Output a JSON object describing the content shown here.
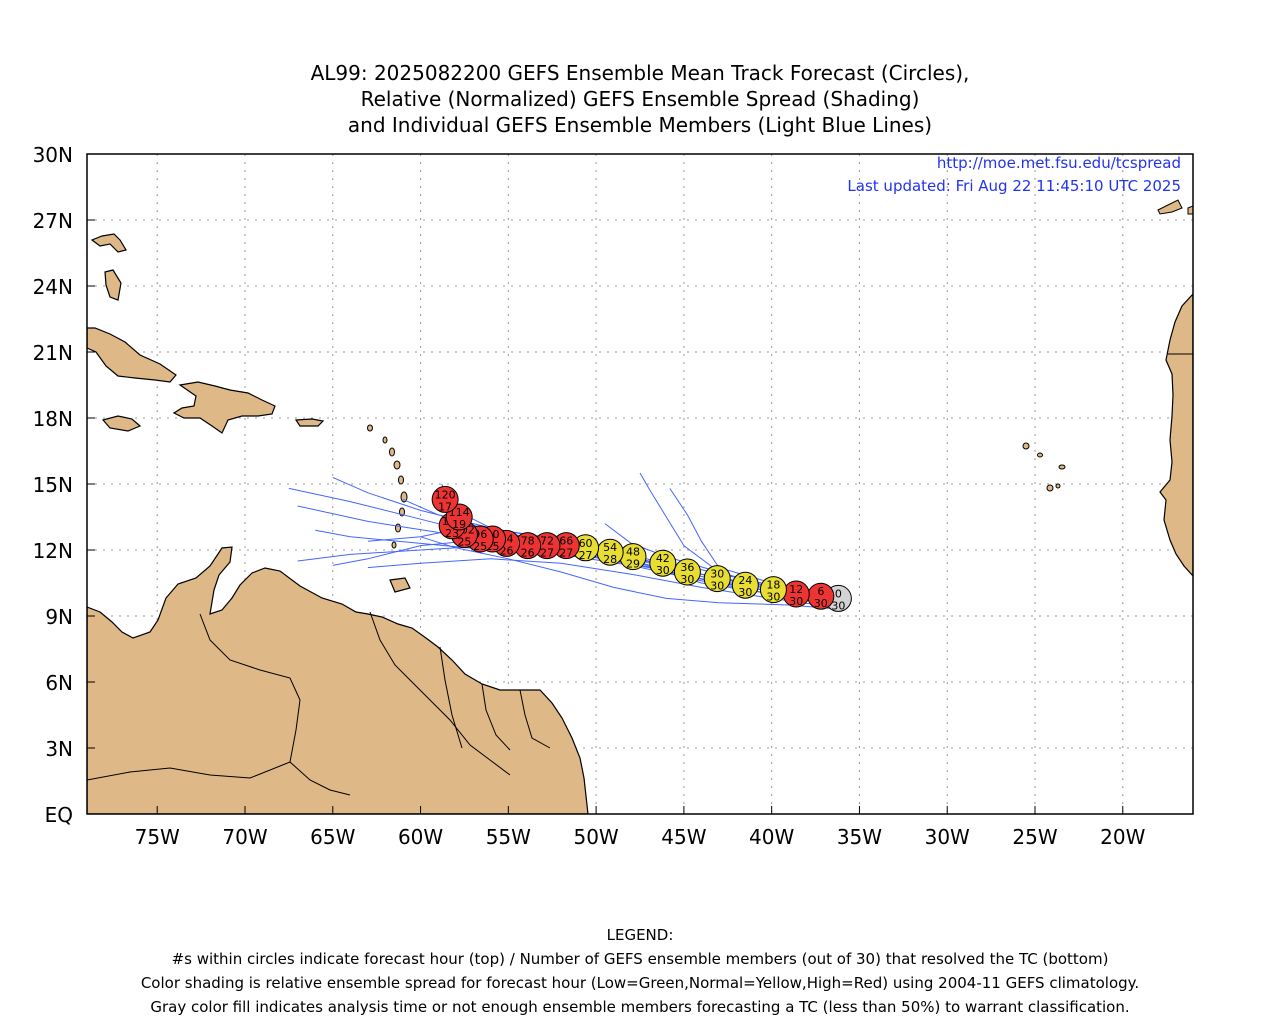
{
  "title": {
    "lines": [
      "AL99: 2025082200 GEFS Ensemble Mean Track Forecast (Circles),",
      "Relative (Normalized) GEFS Ensemble Spread (Shading)",
      "and Individual GEFS Ensemble Members (Light Blue Lines)"
    ]
  },
  "credits": {
    "url": "http://moe.met.fsu.edu/tcspread",
    "updated": "Last updated: Fri Aug 22 11:45:10 UTC 2025",
    "color": "#2233ee"
  },
  "legend": {
    "heading": "LEGEND:",
    "lines": [
      "#s within circles indicate forecast hour (top) / Number of GEFS ensemble members (out of 30) that resolved the TC (bottom)",
      "Color shading is relative ensemble spread for forecast hour (Low=Green,Normal=Yellow,High=Red) using 2004-11 GEFS climatology.",
      "Gray color fill indicates analysis time or not enough ensemble members forecasting a TC (less than 50%) to warrant classification."
    ]
  },
  "colors": {
    "land": "#deb887",
    "member_track": "#4466ff",
    "spread_high": "#ee3333",
    "spread_normal": "#e8dd33",
    "analysis_gray": "#d3d3d3"
  },
  "chart_data": {
    "type": "map",
    "xlim": [
      -79,
      -16
    ],
    "ylim": [
      0,
      30
    ],
    "lat_ticks": [
      "EQ",
      "3N",
      "6N",
      "9N",
      "12N",
      "15N",
      "18N",
      "21N",
      "24N",
      "27N",
      "30N"
    ],
    "lat_values": [
      0,
      3,
      6,
      9,
      12,
      15,
      18,
      21,
      24,
      27,
      30
    ],
    "lon_ticks": [
      "75W",
      "70W",
      "65W",
      "60W",
      "55W",
      "50W",
      "45W",
      "40W",
      "35W",
      "30W",
      "25W",
      "20W"
    ],
    "lon_values": [
      -75,
      -70,
      -65,
      -60,
      -55,
      -50,
      -45,
      -40,
      -35,
      -30,
      -25,
      -20
    ],
    "grid": true,
    "mean_track": [
      {
        "hour": "0",
        "members": "30",
        "lon": -36.2,
        "lat": 9.8,
        "spread": "gray"
      },
      {
        "hour": "6",
        "members": "30",
        "lon": -37.2,
        "lat": 9.9,
        "spread": "high"
      },
      {
        "hour": "12",
        "members": "30",
        "lon": -38.6,
        "lat": 10.0,
        "spread": "high"
      },
      {
        "hour": "18",
        "members": "30",
        "lon": -39.9,
        "lat": 10.2,
        "spread": "normal"
      },
      {
        "hour": "24",
        "members": "30",
        "lon": -41.5,
        "lat": 10.4,
        "spread": "normal"
      },
      {
        "hour": "30",
        "members": "30",
        "lon": -43.1,
        "lat": 10.7,
        "spread": "normal"
      },
      {
        "hour": "36",
        "members": "30",
        "lon": -44.8,
        "lat": 11.0,
        "spread": "normal"
      },
      {
        "hour": "42",
        "members": "30",
        "lon": -46.2,
        "lat": 11.4,
        "spread": "normal"
      },
      {
        "hour": "48",
        "members": "29",
        "lon": -47.9,
        "lat": 11.7,
        "spread": "normal"
      },
      {
        "hour": "54",
        "members": "28",
        "lon": -49.2,
        "lat": 11.9,
        "spread": "normal"
      },
      {
        "hour": "60",
        "members": "27",
        "lon": -50.6,
        "lat": 12.1,
        "spread": "normal"
      },
      {
        "hour": "66",
        "members": "27",
        "lon": -51.7,
        "lat": 12.2,
        "spread": "high"
      },
      {
        "hour": "72",
        "members": "27",
        "lon": -52.8,
        "lat": 12.2,
        "spread": "high"
      },
      {
        "hour": "78",
        "members": "26",
        "lon": -53.9,
        "lat": 12.2,
        "spread": "high"
      },
      {
        "hour": "84",
        "members": "26",
        "lon": -55.1,
        "lat": 12.3,
        "spread": "high"
      },
      {
        "hour": "90",
        "members": "25",
        "lon": -55.9,
        "lat": 12.5,
        "spread": "high"
      },
      {
        "hour": "96",
        "members": "25",
        "lon": -56.6,
        "lat": 12.5,
        "spread": "high"
      },
      {
        "hour": "102",
        "members": "25",
        "lon": -57.5,
        "lat": 12.7,
        "spread": "high"
      },
      {
        "hour": "108",
        "members": "23",
        "lon": -58.2,
        "lat": 13.1,
        "spread": "high"
      },
      {
        "hour": "114",
        "members": "19",
        "lon": -57.8,
        "lat": 13.5,
        "spread": "high"
      },
      {
        "hour": "120",
        "members": "17",
        "lon": -58.6,
        "lat": 14.3,
        "spread": "high"
      }
    ],
    "member_tracks": [
      [
        [
          -36.0,
          9.5
        ],
        [
          -39,
          10.0
        ],
        [
          -43,
          10.5
        ],
        [
          -47,
          11.2
        ],
        [
          -51,
          11.8
        ],
        [
          -55,
          12.3
        ],
        [
          -59,
          12.8
        ],
        [
          -63,
          13.3
        ],
        [
          -67,
          14.0
        ]
      ],
      [
        [
          -36.2,
          9.6
        ],
        [
          -40,
          10.1
        ],
        [
          -44,
          10.8
        ],
        [
          -48,
          11.5
        ],
        [
          -52,
          12.1
        ],
        [
          -56,
          12.6
        ],
        [
          -60,
          13.4
        ],
        [
          -64,
          14.2
        ],
        [
          -67.5,
          14.8
        ]
      ],
      [
        [
          -36.2,
          9.8
        ],
        [
          -40,
          10.2
        ],
        [
          -44,
          10.9
        ],
        [
          -48,
          11.8
        ],
        [
          -52,
          12.4
        ],
        [
          -56,
          13.0
        ],
        [
          -60,
          13.8
        ],
        [
          -63,
          14.6
        ],
        [
          -65,
          15.3
        ]
      ],
      [
        [
          -36.5,
          9.9
        ],
        [
          -40,
          10.4
        ],
        [
          -44,
          11.1
        ],
        [
          -48,
          11.6
        ],
        [
          -52,
          12.0
        ],
        [
          -56,
          12.2
        ],
        [
          -60,
          12.0
        ],
        [
          -64,
          11.8
        ],
        [
          -67,
          11.5
        ]
      ],
      [
        [
          -36.3,
          9.7
        ],
        [
          -40,
          10.0
        ],
        [
          -44,
          10.6
        ],
        [
          -48,
          11.3
        ],
        [
          -52,
          11.8
        ],
        [
          -56,
          12.0
        ],
        [
          -60,
          12.3
        ],
        [
          -64,
          12.6
        ],
        [
          -66,
          12.9
        ]
      ],
      [
        [
          -36.4,
          9.4
        ],
        [
          -40,
          9.8
        ],
        [
          -44,
          10.3
        ],
        [
          -48,
          10.9
        ],
        [
          -52,
          11.4
        ],
        [
          -56,
          11.6
        ],
        [
          -60,
          11.4
        ],
        [
          -63,
          11.2
        ]
      ],
      [
        [
          -36.1,
          9.6
        ],
        [
          -40,
          10.0
        ],
        [
          -44,
          10.5
        ],
        [
          -47.5,
          11.4
        ],
        [
          -50,
          12.2
        ],
        [
          -53,
          12.6
        ],
        [
          -57,
          13.1
        ],
        [
          -60,
          12.6
        ],
        [
          -63,
          12.4
        ]
      ],
      [
        [
          -36.0,
          9.3
        ],
        [
          -39,
          9.5
        ],
        [
          -43,
          9.6
        ],
        [
          -46,
          9.8
        ],
        [
          -49,
          10.3
        ],
        [
          -52,
          11.0
        ],
        [
          -55,
          11.6
        ],
        [
          -58,
          12.1
        ],
        [
          -60,
          12.6
        ]
      ],
      [
        [
          -36.6,
          9.7
        ],
        [
          -40,
          10.3
        ],
        [
          -43,
          11.0
        ],
        [
          -45,
          12.2
        ],
        [
          -46,
          13.5
        ],
        [
          -47,
          14.8
        ],
        [
          -47.5,
          15.5
        ]
      ],
      [
        [
          -36.8,
          9.8
        ],
        [
          -40,
          10.5
        ],
        [
          -43,
          11.2
        ],
        [
          -44,
          12.4
        ],
        [
          -44.8,
          13.6
        ],
        [
          -45.8,
          14.8
        ]
      ],
      [
        [
          -36.6,
          9.6
        ],
        [
          -40,
          10.3
        ],
        [
          -43,
          11.0
        ],
        [
          -46,
          11.7
        ],
        [
          -48,
          12.3
        ],
        [
          -49.5,
          13.2
        ]
      ],
      [
        [
          -36.3,
          9.5
        ],
        [
          -40,
          10.1
        ],
        [
          -44,
          10.7
        ],
        [
          -48,
          11.4
        ],
        [
          -52,
          12.0
        ],
        [
          -55.5,
          12.8
        ],
        [
          -58,
          13.8
        ],
        [
          -58.8,
          15.0
        ]
      ],
      [
        [
          -36.4,
          9.9
        ],
        [
          -40,
          10.3
        ],
        [
          -44,
          10.9
        ],
        [
          -48,
          11.7
        ],
        [
          -52,
          12.2
        ],
        [
          -56,
          12.5
        ],
        [
          -60,
          12.2
        ],
        [
          -63,
          11.6
        ],
        [
          -65,
          11.3
        ]
      ],
      [
        [
          -36.2,
          9.6
        ],
        [
          -40,
          10.2
        ],
        [
          -44,
          10.9
        ],
        [
          -48,
          11.6
        ],
        [
          -52,
          12.3
        ],
        [
          -56,
          12.9
        ],
        [
          -59,
          13.6
        ],
        [
          -61,
          14.3
        ]
      ]
    ]
  }
}
